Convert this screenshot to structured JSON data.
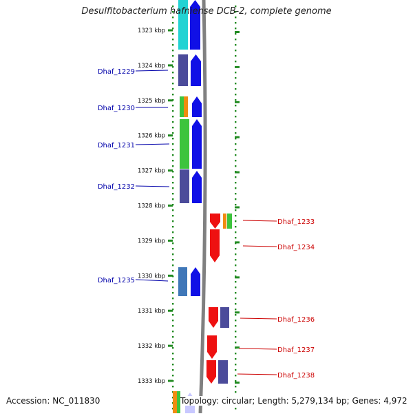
{
  "title": "Desulfitobacterium hafniense DCB-2, complete genome",
  "accession": "Accession: NC_011830",
  "topology": "Topology: circular; Length: 5,279,134 bp; Genes: 4,972",
  "colors": {
    "left_gene_label": "#0000aa",
    "right_gene_label": "#cc0000",
    "ruler_dots": "#228b22",
    "backbone": "#808080",
    "cyan": "#22d3d3",
    "slate": "#4b4b9a",
    "blue": "#1010e6",
    "green": "#3dc43d",
    "orange": "#f08c10",
    "red": "#ee1111",
    "steelblue": "#3f77b8",
    "light": "#c8c8ff"
  },
  "ruler": {
    "unit": "kbp",
    "ticks": [
      "1323 kbp",
      "1324 kbp",
      "1325 kbp",
      "1326 kbp",
      "1327 kbp",
      "1328 kbp",
      "1329 kbp",
      "1330 kbp",
      "1331 kbp",
      "1332 kbp",
      "1333 kbp"
    ]
  },
  "left_labels": [
    "Dhaf_1229",
    "Dhaf_1230",
    "Dhaf_1231",
    "Dhaf_1232",
    "Dhaf_1235"
  ],
  "right_labels": [
    "Dhaf_1233",
    "Dhaf_1234",
    "Dhaf_1236",
    "Dhaf_1237",
    "Dhaf_1238"
  ]
}
